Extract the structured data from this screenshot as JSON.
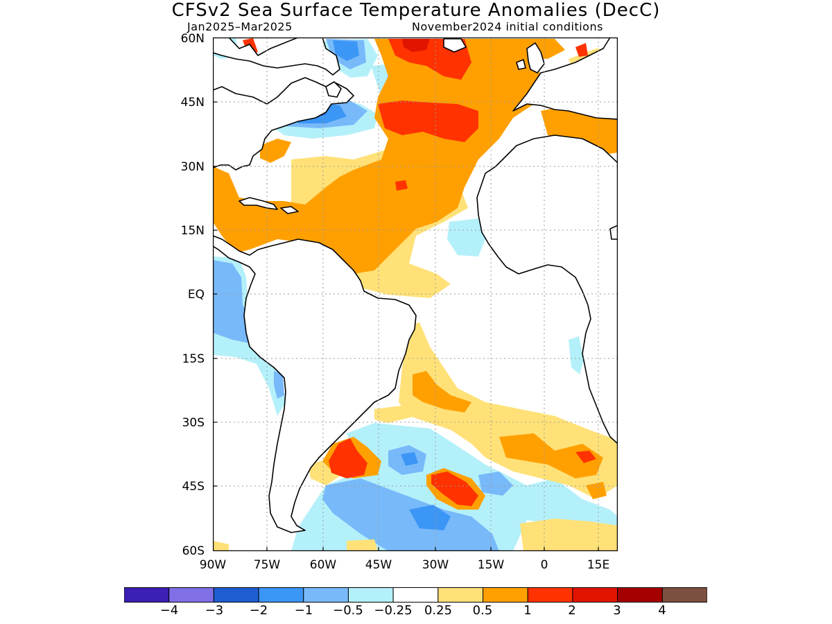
{
  "title": "CFSv2 Sea Surface Temperature Anomalies (DecC)",
  "period": "Jan2025–Mar2025",
  "initial_conditions": "November2024 initial conditions",
  "lat_ticks": [
    "60N",
    "45N",
    "30N",
    "15N",
    "EQ",
    "15S",
    "30S",
    "45S",
    "60S"
  ],
  "lon_ticks": [
    "90W",
    "75W",
    "60W",
    "45W",
    "30W",
    "15W",
    "0",
    "15E"
  ],
  "colorbar": {
    "colors": [
      "#3c1fb4",
      "#8070e8",
      "#1e5ed2",
      "#3c96f5",
      "#78b9fa",
      "#b4f0fa",
      "#ffffff",
      "#ffe178",
      "#ffa000",
      "#ff3200",
      "#e11400",
      "#a50000",
      "#7c5040"
    ],
    "labels": [
      "−4",
      "−3",
      "−2",
      "−1",
      "−0.5",
      "−0.25",
      "0.25",
      "0.5",
      "1",
      "2",
      "3",
      "4"
    ]
  },
  "colors": {
    "land": "#ffffff",
    "coastline": "#000000",
    "grid": "#9a9a9a"
  }
}
